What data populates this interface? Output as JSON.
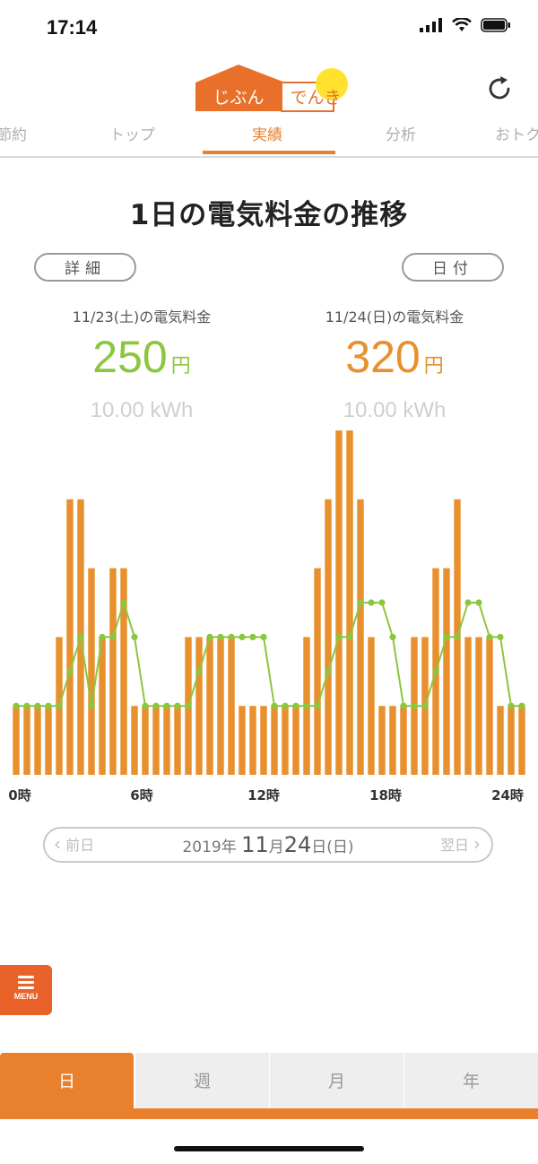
{
  "status_bar": {
    "time": "17:14",
    "icons": [
      "signal-icon",
      "wifi-icon",
      "battery-icon"
    ]
  },
  "header": {
    "logo": {
      "part1": "じぶん",
      "part2": "でんき"
    },
    "refresh_icon": "refresh-icon"
  },
  "tabs": [
    {
      "label": "節約"
    },
    {
      "label": "トップ"
    },
    {
      "label": "実績",
      "active": true
    },
    {
      "label": "分析"
    },
    {
      "label": "おトク"
    }
  ],
  "page": {
    "title": "1日の電気料金の推移",
    "detail_button": "詳細",
    "date_button": "日付"
  },
  "summary": [
    {
      "date": "11/23(土)の電気料金",
      "amount": "250",
      "unit": "円",
      "kwh": "10.00 kWh",
      "color": "#8cc63f"
    },
    {
      "date": "11/24(日)の電気料金",
      "amount": "320",
      "unit": "円",
      "kwh": "10.00 kWh",
      "color": "#e8902e"
    }
  ],
  "chart_data": {
    "type": "bar",
    "x_unit": "30 min",
    "x_ticks": [
      "0時",
      "6時",
      "12時",
      "18時",
      "24時"
    ],
    "grid": false,
    "ylim": [
      0,
      10
    ],
    "series": [
      {
        "type": "bar",
        "color": "#e8902e",
        "values": [
          2,
          2,
          2,
          2,
          4,
          8,
          8,
          6,
          4,
          6,
          6,
          2,
          2,
          2,
          2,
          2,
          4,
          4,
          4,
          4,
          4,
          2,
          2,
          2,
          2,
          2,
          2,
          4,
          6,
          8,
          10,
          10,
          8,
          4,
          2,
          2,
          2,
          4,
          4,
          6,
          6,
          8,
          4,
          4,
          4,
          2,
          2,
          2
        ]
      },
      {
        "type": "line",
        "color": "#8cc63f",
        "values": [
          2,
          2,
          2,
          2,
          2,
          3,
          4,
          2,
          4,
          4,
          5,
          4,
          2,
          2,
          2,
          2,
          2,
          3,
          4,
          4,
          4,
          4,
          4,
          4,
          2,
          2,
          2,
          2,
          2,
          3,
          4,
          4,
          5,
          5,
          5,
          4,
          2,
          2,
          2,
          3,
          4,
          4,
          5,
          5,
          4,
          4,
          2,
          2
        ]
      }
    ]
  },
  "date_nav": {
    "prev": "前日",
    "year": "2019",
    "year_suffix": "年",
    "month": "11",
    "month_suffix": "月",
    "day": "24",
    "day_suffix": "日",
    "weekday": "(日)",
    "next": "翌日"
  },
  "menu": {
    "label": "MENU"
  },
  "period_tabs": [
    {
      "label": "日",
      "active": true
    },
    {
      "label": "週"
    },
    {
      "label": "月"
    },
    {
      "label": "年"
    }
  ]
}
